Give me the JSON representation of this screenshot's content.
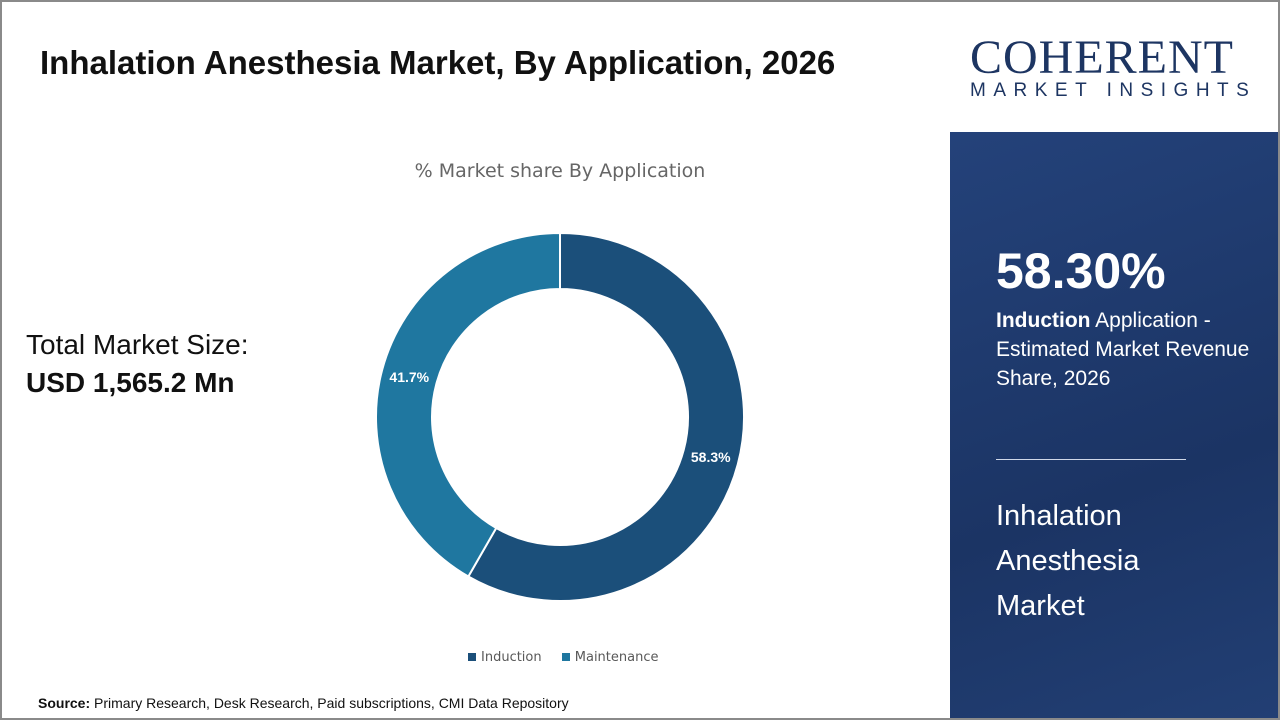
{
  "title": "Inhalation Anesthesia Market, By Application, 2026",
  "total_label": "Total Market Size:",
  "total_value": "USD 1,565.2 Mn",
  "source_label": "Source:",
  "source_text": "Primary Research, Desk Research, Paid subscriptions, CMI Data Repository",
  "logo": {
    "word": "COHERENT",
    "tagline": "MARKET INSIGHTS"
  },
  "panel": {
    "percent": "58.30%",
    "highlight": "Induction",
    "desc": "Application - Estimated Market Revenue Share, 2026",
    "market": "Inhalation Anesthesia Market"
  },
  "chart_data": {
    "type": "pie",
    "donut": true,
    "title": "% Market share By Application",
    "categories": [
      "Induction",
      "Maintenance"
    ],
    "values": [
      58.3,
      41.7
    ],
    "labels": [
      "58.3%",
      "41.7%"
    ],
    "colors": [
      "#1b4f7a",
      "#1f77a0"
    ],
    "legend": "bottom"
  }
}
